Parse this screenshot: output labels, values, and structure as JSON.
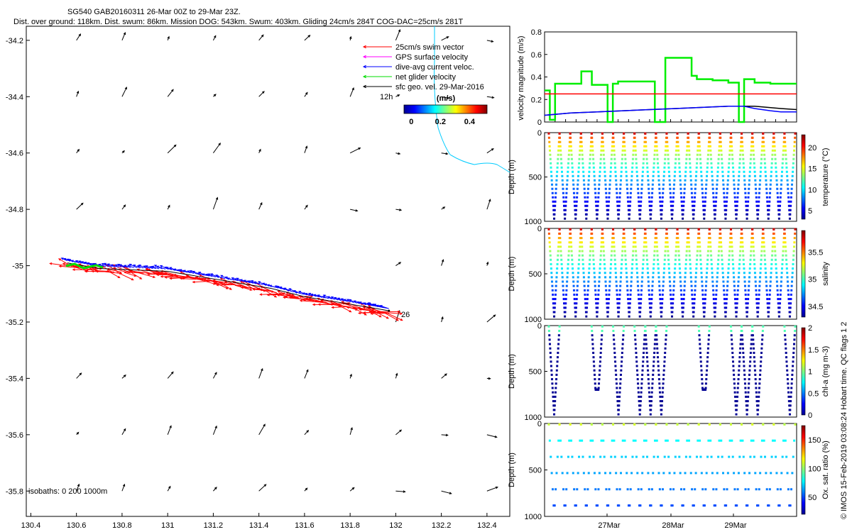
{
  "header": {
    "title_line1": "SG540 GAB20160311 26-Mar 00Z to 29-Mar 23Z.",
    "title_line2": "Dist. over ground: 118km. Dist. swum: 86km. Mission DOG: 543km. Swum: 403km. Gliding 24cm/s 284T COG-DAC=25cm/s 281T"
  },
  "credit": "© IMOS 15-Feb-2019 03:08:24 Hobart time. QC flags 1  2",
  "colors": {
    "swim": "#ff0000",
    "gps": "#ff00ff",
    "dac": "#0000ff",
    "net": "#00dd00",
    "geo": "#000000",
    "coast": "#00ccff"
  },
  "chart_data": [
    {
      "type": "scatter",
      "name": "map",
      "x_ticks": [
        "130.4",
        "130.6",
        "130.8",
        "131",
        "131.2",
        "131.4",
        "131.6",
        "131.8",
        "132",
        "132.2",
        "132.4"
      ],
      "y_ticks": [
        "-34.2",
        "-34.4",
        "-34.6",
        "-34.8",
        "-35",
        "-35.2",
        "-35.4",
        "-35.6",
        "-35.8"
      ],
      "xlim": [
        130.38,
        132.5
      ],
      "ylim": [
        -35.89,
        -34.15
      ],
      "legend": [
        {
          "label": "25cm/s swim vector",
          "color": "#ff0000"
        },
        {
          "label": "GPS surface velocity",
          "color": "#ff00ff"
        },
        {
          "label": "dive-avg current veloc.",
          "color": "#0000ff"
        },
        {
          "label": "net glider velocity",
          "color": "#00dd00"
        },
        {
          "label": "sfc geo. vel. 29-Mar-2016",
          "color": "#000000"
        }
      ],
      "legend_scale_label": "12h",
      "colorbar": {
        "title": "(m/s)",
        "ticks": [
          "0",
          "0.2",
          "0.4"
        ],
        "range": [
          -0.05,
          0.52
        ]
      },
      "isobath_label": "isobaths: 0   200  1000m",
      "track_label": "26",
      "track": {
        "lon": [
          130.56,
          130.7,
          130.85,
          131.0,
          131.15,
          131.3,
          131.45,
          131.6,
          131.75,
          131.9,
          131.97
        ],
        "lat": [
          -34.99,
          -35.01,
          -35.015,
          -35.02,
          -35.04,
          -35.06,
          -35.08,
          -35.11,
          -35.13,
          -35.15,
          -35.16
        ]
      }
    },
    {
      "type": "line",
      "name": "velocity",
      "ylabel": "velocity magnitude (m/s)",
      "yticks": [
        "0",
        "0.2",
        "0.4",
        "0.6",
        "0.8"
      ],
      "ylim": [
        0,
        0.8
      ],
      "xlim": [
        0,
        96
      ],
      "series": [
        {
          "color": "#00ee00",
          "x": [
            0,
            2,
            2,
            4,
            4,
            14,
            14,
            18,
            18,
            24,
            24,
            26,
            26,
            28,
            28,
            42,
            42,
            46,
            46,
            56,
            56,
            58,
            58,
            64,
            64,
            70,
            70,
            74,
            74,
            76,
            76,
            80,
            80,
            86,
            86,
            96
          ],
          "y": [
            0.28,
            0.28,
            0.02,
            0.02,
            0.34,
            0.34,
            0.45,
            0.45,
            0.33,
            0.33,
            0.0,
            0.0,
            0.34,
            0.34,
            0.36,
            0.36,
            0.0,
            0.0,
            0.57,
            0.57,
            0.41,
            0.41,
            0.38,
            0.38,
            0.37,
            0.37,
            0.35,
            0.35,
            0.0,
            0.0,
            0.38,
            0.38,
            0.35,
            0.35,
            0.34,
            0.34
          ]
        },
        {
          "color": "#ff0000",
          "x": [
            0,
            96
          ],
          "y": [
            0.25,
            0.25
          ]
        },
        {
          "color": "#000000",
          "x": [
            0,
            10,
            20,
            30,
            40,
            50,
            60,
            70,
            80,
            90,
            96
          ],
          "y": [
            0.06,
            0.08,
            0.09,
            0.1,
            0.11,
            0.12,
            0.13,
            0.14,
            0.14,
            0.12,
            0.11
          ]
        },
        {
          "color": "#0000ff",
          "x": [
            0,
            10,
            20,
            30,
            40,
            50,
            60,
            70,
            76,
            80,
            86,
            90,
            96
          ],
          "y": [
            0.06,
            0.08,
            0.09,
            0.1,
            0.11,
            0.12,
            0.13,
            0.14,
            0.14,
            0.12,
            0.1,
            0.09,
            0.09
          ]
        }
      ]
    },
    {
      "type": "scatter",
      "name": "temperature",
      "ylabel": "Depth (m)",
      "yticks": [
        "0",
        "500",
        "1000"
      ],
      "ylim": [
        1000,
        0
      ],
      "colorbar": {
        "label": "temperature (°C)",
        "ticks": [
          "5",
          "10",
          "15",
          "20"
        ],
        "range": [
          3,
          23
        ]
      },
      "pattern": "sawtooth",
      "dives": 23
    },
    {
      "type": "scatter",
      "name": "salinity",
      "ylabel": "Depth (m)",
      "yticks": [
        "0",
        "500",
        "1000"
      ],
      "ylim": [
        1000,
        0
      ],
      "colorbar": {
        "label": "salinity",
        "ticks": [
          "34.5",
          "35",
          "35.5"
        ],
        "range": [
          34.3,
          35.9
        ]
      },
      "pattern": "sawtooth",
      "dives": 23
    },
    {
      "type": "scatter",
      "name": "chl-a",
      "ylabel": "Depth (m)",
      "yticks": [
        "0",
        "500",
        "1000"
      ],
      "ylim": [
        1000,
        0
      ],
      "colorbar": {
        "label": "chl-a (mg m-3)",
        "ticks": [
          "0",
          "0.5",
          "1",
          "1.5",
          "2"
        ],
        "range": [
          0,
          2
        ]
      },
      "pattern": "partial",
      "dives": 23
    },
    {
      "type": "scatter",
      "name": "oxygen",
      "ylabel": "Depth (m)",
      "yticks": [
        "0",
        "500",
        "1000"
      ],
      "ylim": [
        1000,
        0
      ],
      "colorbar": {
        "label": "Ox. sat. ratio (%)",
        "ticks": [
          "50",
          "100",
          "150"
        ],
        "range": [
          20,
          175
        ]
      },
      "xticks": [
        "27Mar",
        "28Mar",
        "29Mar"
      ],
      "pattern": "sparse",
      "dives": 23
    }
  ]
}
